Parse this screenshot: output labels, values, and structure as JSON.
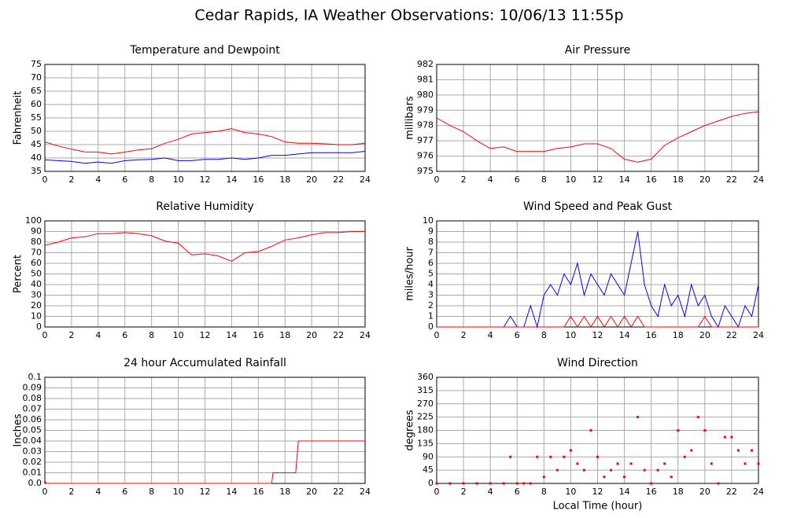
{
  "title": "Cedar Rapids, IA Weather Observations: 10/06/13 11:55p",
  "chart_data": [
    {
      "type": "line",
      "title": "Temperature and Dewpoint",
      "ylabel": "Fahrenheit",
      "x": [
        0,
        1,
        2,
        3,
        4,
        5,
        6,
        7,
        8,
        9,
        10,
        11,
        12,
        13,
        14,
        15,
        16,
        17,
        18,
        19,
        20,
        21,
        22,
        23,
        24
      ],
      "series": [
        {
          "color": "#ff0000",
          "values": [
            46,
            44.5,
            43.3,
            42.3,
            42.2,
            41.5,
            42.2,
            43,
            43.5,
            45.5,
            47,
            49,
            49.5,
            50,
            51,
            49.5,
            49,
            48,
            46,
            45.5,
            45.5,
            45.3,
            45,
            45,
            45.5
          ]
        },
        {
          "color": "#0000ff",
          "values": [
            39.3,
            39,
            38.7,
            38,
            38.5,
            38,
            39,
            39.3,
            39.5,
            40,
            39,
            39,
            39.5,
            39.5,
            40,
            39.5,
            40,
            41,
            41,
            41.5,
            42,
            42,
            42,
            42,
            42.5
          ]
        }
      ],
      "xlim": [
        0,
        24
      ],
      "xticks": [
        0,
        2,
        4,
        6,
        8,
        10,
        12,
        14,
        16,
        18,
        20,
        22,
        24
      ],
      "ylim": [
        35,
        75
      ],
      "yticks": [
        35,
        40,
        45,
        50,
        55,
        60,
        65,
        70,
        75
      ],
      "grid": true
    },
    {
      "type": "line",
      "title": "Air Pressure",
      "ylabel": "millibars",
      "x": [
        0,
        1,
        2,
        3,
        4,
        5,
        6,
        7,
        8,
        9,
        10,
        11,
        12,
        13,
        14,
        15,
        16,
        17,
        18,
        19,
        20,
        21,
        22,
        23,
        24
      ],
      "series": [
        {
          "color": "#ff0000",
          "values": [
            978.5,
            978,
            977.6,
            977,
            976.5,
            976.6,
            976.3,
            976.3,
            976.3,
            976.5,
            976.6,
            976.8,
            976.8,
            976.5,
            975.8,
            975.6,
            975.8,
            976.7,
            977.2,
            977.6,
            978,
            978.3,
            978.6,
            978.8,
            978.9
          ]
        }
      ],
      "xlim": [
        0,
        24
      ],
      "xticks": [
        0,
        2,
        4,
        6,
        8,
        10,
        12,
        14,
        16,
        18,
        20,
        22,
        24
      ],
      "ylim": [
        975,
        982
      ],
      "yticks": [
        975,
        976,
        977,
        978,
        979,
        980,
        981,
        982
      ],
      "grid": true
    },
    {
      "type": "line",
      "title": "Relative Humidity",
      "ylabel": "Percent",
      "x": [
        0,
        1,
        2,
        3,
        4,
        5,
        6,
        7,
        8,
        9,
        10,
        11,
        12,
        13,
        14,
        15,
        16,
        17,
        18,
        19,
        20,
        21,
        22,
        23,
        24
      ],
      "series": [
        {
          "color": "#ff0000",
          "values": [
            77,
            80,
            84,
            85,
            88,
            88,
            89,
            88,
            86,
            81,
            79,
            68,
            69,
            67,
            62,
            70,
            71,
            76,
            82,
            84,
            87,
            89,
            89,
            90,
            90
          ]
        }
      ],
      "xlim": [
        0,
        24
      ],
      "xticks": [
        0,
        2,
        4,
        6,
        8,
        10,
        12,
        14,
        16,
        18,
        20,
        22,
        24
      ],
      "ylim": [
        0,
        100
      ],
      "yticks": [
        0,
        10,
        20,
        30,
        40,
        50,
        60,
        70,
        80,
        90,
        100
      ],
      "grid": true
    },
    {
      "type": "line",
      "title": "Wind Speed and Peak Gust",
      "ylabel": "miles/hour",
      "x": [
        0,
        0.5,
        1,
        1.5,
        2,
        2.5,
        3,
        3.5,
        4,
        4.5,
        5,
        5.5,
        6,
        6.5,
        7,
        7.5,
        8,
        8.5,
        9,
        9.5,
        10,
        10.5,
        11,
        11.5,
        12,
        12.5,
        13,
        13.5,
        14,
        14.5,
        15,
        15.5,
        16,
        16.5,
        17,
        17.5,
        18,
        18.5,
        19,
        19.5,
        20,
        20.5,
        21,
        21.5,
        22,
        22.5,
        23,
        23.5,
        24
      ],
      "series": [
        {
          "color": "#0000ff",
          "values": [
            0,
            0,
            0,
            0,
            0,
            0,
            0,
            0,
            0,
            0,
            0,
            1,
            0,
            0,
            2,
            0,
            3,
            4,
            3,
            5,
            4,
            6,
            3,
            5,
            4,
            3,
            5,
            4,
            3,
            6,
            9,
            4,
            2,
            1,
            4,
            2,
            3,
            1,
            4,
            2,
            3,
            1,
            0,
            2,
            1,
            0,
            2,
            1,
            4
          ]
        },
        {
          "color": "#ff0000",
          "values": [
            0,
            0,
            0,
            0,
            0,
            0,
            0,
            0,
            0,
            0,
            0,
            0,
            0,
            0,
            0,
            0,
            0,
            0,
            0,
            0,
            1,
            0,
            1,
            0,
            1,
            0,
            1,
            0,
            1,
            0,
            1,
            0,
            0,
            0,
            0,
            0,
            0,
            0,
            0,
            0,
            1,
            0,
            0,
            0,
            0,
            0,
            0,
            0,
            0
          ]
        }
      ],
      "xlim": [
        0,
        24
      ],
      "xticks": [
        0,
        2,
        4,
        6,
        8,
        10,
        12,
        14,
        16,
        18,
        20,
        22,
        24
      ],
      "ylim": [
        0,
        10
      ],
      "yticks": [
        0,
        1,
        2,
        3,
        4,
        5,
        6,
        7,
        8,
        9,
        10
      ],
      "grid": true
    },
    {
      "type": "line",
      "title": "24 hour Accumulated Rainfall",
      "ylabel": "Inches",
      "x": [
        0,
        0.1,
        17,
        17.1,
        18.8,
        19,
        24
      ],
      "series": [
        {
          "color": "#ff0000",
          "values": [
            0.003,
            0,
            0,
            0.01,
            0.01,
            0.04,
            0.04
          ]
        }
      ],
      "xlim": [
        0,
        24
      ],
      "xticks": [
        0,
        2,
        4,
        6,
        8,
        10,
        12,
        14,
        16,
        18,
        20,
        22,
        24
      ],
      "ylim": [
        0,
        0.1
      ],
      "yticks": [
        {
          "value": 0,
          "label": "0.0"
        },
        0.01,
        0.02,
        0.03,
        0.04,
        0.05,
        0.06,
        0.07,
        0.08,
        0.09,
        0.1
      ],
      "grid": true
    },
    {
      "type": "scatter",
      "title": "Wind Direction",
      "ylabel": "degrees",
      "xlabel": "Local Time (hour)",
      "color": "#ff0000",
      "x": [
        0,
        1,
        2,
        3,
        4,
        5,
        5.5,
        6,
        6.5,
        7,
        7.5,
        8,
        8.5,
        9,
        9.5,
        10,
        10.5,
        11,
        11.5,
        12,
        12.5,
        13,
        13.5,
        14,
        14.5,
        15,
        15.5,
        16,
        16.5,
        17,
        17.5,
        18,
        18.5,
        19,
        19.5,
        20,
        20.5,
        21,
        21.5,
        22,
        22.5,
        23,
        23.5,
        24
      ],
      "values": [
        0,
        0,
        0,
        0,
        0,
        0,
        90,
        0,
        0,
        0,
        90,
        22,
        90,
        45,
        90,
        112,
        67,
        45,
        180,
        90,
        22,
        45,
        67,
        22,
        67,
        225,
        45,
        0,
        45,
        67,
        22,
        180,
        90,
        112,
        225,
        180,
        67,
        0,
        157,
        157,
        112,
        67,
        112,
        67
      ],
      "xlim": [
        0,
        24
      ],
      "xticks": [
        0,
        2,
        4,
        6,
        8,
        10,
        12,
        14,
        16,
        18,
        20,
        22,
        24
      ],
      "ylim": [
        0,
        360
      ],
      "yticks": [
        0,
        45,
        90,
        135,
        180,
        225,
        270,
        315,
        360
      ],
      "grid": true
    }
  ]
}
